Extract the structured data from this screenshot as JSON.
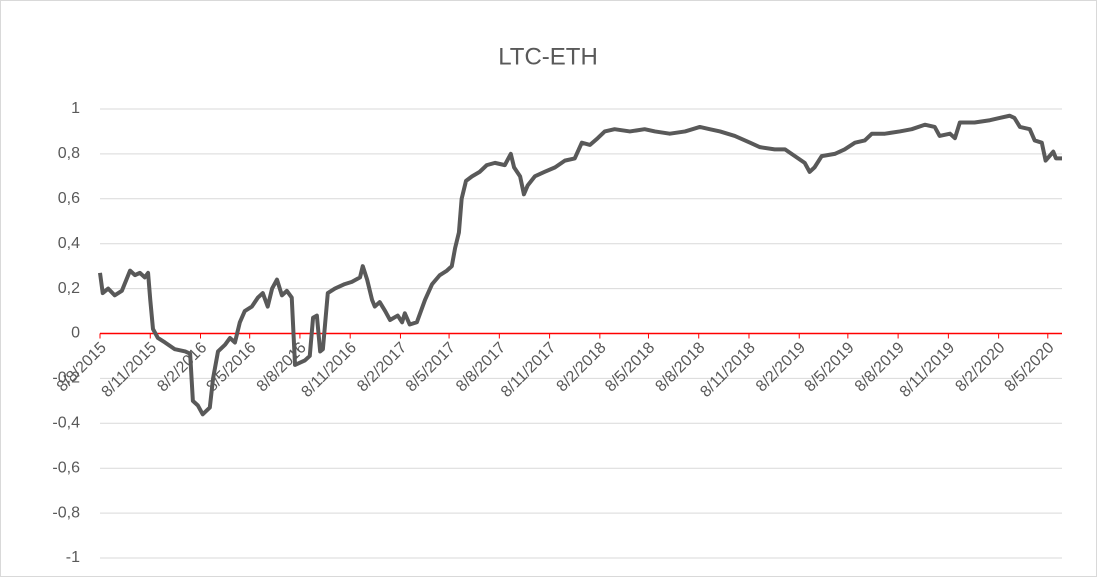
{
  "chart_data": {
    "type": "line",
    "title": "LTC-ETH",
    "ylim": [
      -1,
      1
    ],
    "yticks": [
      {
        "value": -1,
        "label": "-1"
      },
      {
        "value": -0.8,
        "label": "-0,8"
      },
      {
        "value": -0.6,
        "label": "-0,6"
      },
      {
        "value": -0.4,
        "label": "-0,4"
      },
      {
        "value": -0.2,
        "label": "-0,2"
      },
      0,
      {
        "value": 0.2,
        "label": "0,2"
      },
      {
        "value": 0.4,
        "label": "0,4"
      },
      {
        "value": 0.6,
        "label": "0,6"
      },
      {
        "value": 0.8,
        "label": "0,8"
      },
      1
    ],
    "xlim": [
      "8/8/2015",
      "3/6/2020"
    ],
    "xticks": [
      "8/8/2015",
      "8/11/2015",
      "8/2/2016",
      "8/5/2016",
      "8/8/2016",
      "8/11/2016",
      "8/2/2017",
      "8/5/2017",
      "8/8/2017",
      "8/11/2017",
      "8/2/2018",
      "8/5/2018",
      "8/8/2018",
      "8/11/2018",
      "8/2/2019",
      "8/5/2019",
      "8/8/2019",
      "8/11/2019",
      "8/2/2020",
      "8/5/2020"
    ],
    "grid": true,
    "grid_color": "#d9d9d9",
    "zero_line_color": "#ff0000",
    "series": [
      {
        "color": "#595959",
        "x": [
          "8/8/2015",
          "13/8/2015",
          "23/8/2015",
          "4/9/2015",
          "17/9/2015",
          "2/10/2015",
          "11/10/2015",
          "20/10/2015",
          "29/10/2015",
          "4/11/2015",
          "8/11/2015",
          "13/11/2015",
          "22/11/2015",
          "5/12/2015",
          "23/12/2015",
          "11/1/2016",
          "20/1/2016",
          "25/1/2016",
          "3/2/2016",
          "12/2/2016",
          "25/2/2016",
          "2/3/2016",
          "11/3/2016",
          "24/3/2016",
          "2/4/2016",
          "11/4/2016",
          "20/4/2016",
          "29/4/2016",
          "12/5/2016",
          "23/5/2016",
          "1/6/2016",
          "10/6/2016",
          "18/6/2016",
          "27/6/2016",
          "6/7/2016",
          "15/7/2016",
          "24/7/2016",
          "30/7/2016",
          "8/8/2016",
          "17/8/2016",
          "26/8/2016",
          "1/9/2016",
          "8/9/2016",
          "14/9/2016",
          "19/9/2016",
          "28/9/2016",
          "11/10/2016",
          "29/10/2016",
          "11/11/2016",
          "26/11/2016",
          "1/12/2016",
          "9/12/2016",
          "18/12/2016",
          "23/12/2016",
          "1/1/2017",
          "11/1/2017",
          "20/1/2017",
          "3/2/2017",
          "11/2/2017",
          "16/2/2017",
          "25/2/2017",
          "10/3/2017",
          "25/3/2017",
          "7/4/2017",
          "21/4/2017",
          "4/5/2017",
          "13/5/2017",
          "19/5/2017",
          "26/5/2017",
          "31/5/2017",
          "8/6/2017",
          "19/6/2017",
          "3/7/2017",
          "16/7/2017",
          "31/7/2017",
          "18/8/2017",
          "29/8/2017",
          "4/9/2017",
          "15/9/2017",
          "22/9/2017",
          "29/9/2017",
          "12/10/2017",
          "30/10/2017",
          "18/11/2017",
          "6/12/2017",
          "24/12/2017",
          "6/1/2018",
          "21/1/2018",
          "4/2/2018",
          "17/2/2018",
          "7/3/2018",
          "4/4/2018",
          "1/5/2018",
          "20/5/2018",
          "16/6/2018",
          "14/7/2018",
          "10/8/2018",
          "28/8/2018",
          "16/9/2018",
          "13/10/2018",
          "10/11/2018",
          "28/11/2018",
          "25/12/2018",
          "13/1/2019",
          "31/1/2019",
          "18/2/2019",
          "27/2/2019",
          "8/3/2019",
          "21/3/2019",
          "14/4/2019",
          "2/5/2019",
          "21/5/2019",
          "8/6/2019",
          "21/6/2019",
          "15/7/2019",
          "11/8/2019",
          "2/9/2019",
          "26/9/2019",
          "14/10/2019",
          "23/10/2019",
          "11/11/2019",
          "20/11/2019",
          "29/11/2019",
          "26/12/2019",
          "23/1/2020",
          "10/2/2020",
          "28/2/2020",
          "8/3/2020",
          "18/3/2020",
          "5/4/2020",
          "14/4/2020",
          "27/4/2020",
          "4/5/2020",
          "11/5/2020",
          "18/5/2020",
          "23/5/2020",
          "3/6/2020"
        ],
        "values": [
          0.27,
          0.18,
          0.2,
          0.17,
          0.19,
          0.28,
          0.26,
          0.27,
          0.25,
          0.27,
          0.15,
          0.02,
          -0.02,
          -0.04,
          -0.07,
          -0.08,
          -0.09,
          -0.3,
          -0.32,
          -0.36,
          -0.33,
          -0.2,
          -0.08,
          -0.05,
          -0.02,
          -0.04,
          0.05,
          0.1,
          0.12,
          0.16,
          0.18,
          0.12,
          0.2,
          0.24,
          0.17,
          0.19,
          0.16,
          -0.14,
          -0.13,
          -0.12,
          -0.1,
          0.07,
          0.08,
          -0.08,
          -0.07,
          0.18,
          0.2,
          0.22,
          0.23,
          0.25,
          0.3,
          0.24,
          0.15,
          0.12,
          0.14,
          0.1,
          0.06,
          0.08,
          0.05,
          0.09,
          0.04,
          0.05,
          0.15,
          0.22,
          0.26,
          0.28,
          0.3,
          0.38,
          0.45,
          0.6,
          0.68,
          0.7,
          0.72,
          0.75,
          0.76,
          0.75,
          0.8,
          0.74,
          0.7,
          0.62,
          0.66,
          0.7,
          0.72,
          0.74,
          0.77,
          0.78,
          0.85,
          0.84,
          0.87,
          0.9,
          0.91,
          0.9,
          0.91,
          0.9,
          0.89,
          0.9,
          0.92,
          0.91,
          0.9,
          0.88,
          0.85,
          0.83,
          0.82,
          0.82,
          0.79,
          0.76,
          0.72,
          0.74,
          0.79,
          0.8,
          0.82,
          0.85,
          0.86,
          0.89,
          0.89,
          0.9,
          0.91,
          0.93,
          0.92,
          0.88,
          0.89,
          0.87,
          0.94,
          0.94,
          0.95,
          0.96,
          0.97,
          0.96,
          0.92,
          0.91,
          0.86,
          0.85,
          0.77,
          0.79,
          0.81,
          0.78,
          0.78
        ]
      }
    ]
  }
}
